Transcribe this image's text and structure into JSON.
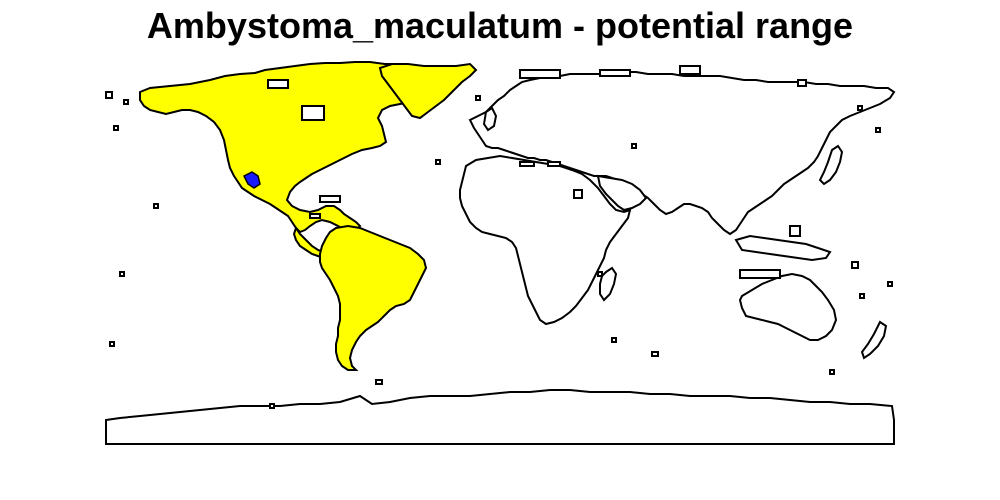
{
  "map": {
    "title": "Ambystoma_maculatum - potential range",
    "species": "Ambystoma_maculatum",
    "range_fill_color": "#ffff00",
    "land_fill_color": "#ffffff",
    "outline_color": "#000000",
    "suitable_hotspot_color": "#1a1aff",
    "range_regions": [
      "North America",
      "Central America",
      "South America"
    ]
  }
}
